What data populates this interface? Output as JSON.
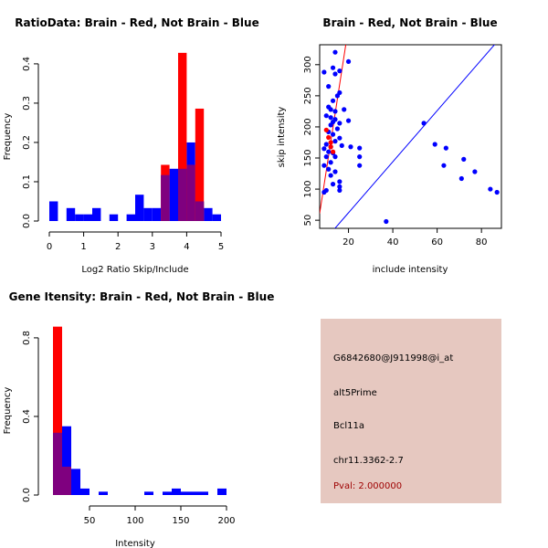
{
  "chart_data": [
    {
      "type": "bar",
      "title": "RatioData: Brain - Red, Not Brain - Blue",
      "xlabel": "Log2 Ratio Skip/Include",
      "ylabel": "Frequency",
      "xlim": [
        0,
        5
      ],
      "ylim": [
        0,
        0.43
      ],
      "x_ticks": [
        0,
        1,
        2,
        3,
        4,
        5
      ],
      "y_ticks": [
        0.0,
        0.1,
        0.2,
        0.3,
        0.4
      ],
      "y_tick_labels": [
        "0.0",
        "0.1",
        "0.2",
        "0.3",
        "0.4"
      ],
      "bin_width": 0.25,
      "series": [
        {
          "name": "Brain",
          "color": "#ff0000",
          "bins_start": [
            3.25,
            3.75,
            4.0,
            4.25
          ],
          "values": [
            0.143,
            0.428,
            0.143,
            0.286
          ]
        },
        {
          "name": "Not Brain",
          "color": "#0000ff",
          "bins_start": [
            0.0,
            0.5,
            0.75,
            1.0,
            1.25,
            1.75,
            2.25,
            2.5,
            2.75,
            3.0,
            3.25,
            3.5,
            3.75,
            4.0,
            4.25,
            4.5,
            4.75
          ],
          "values": [
            0.05,
            0.033,
            0.017,
            0.017,
            0.033,
            0.017,
            0.017,
            0.067,
            0.033,
            0.033,
            0.117,
            0.133,
            0.133,
            0.2,
            0.05,
            0.033,
            0.017
          ]
        }
      ]
    },
    {
      "type": "scatter",
      "title": "Brain - Red, Not Brain - Blue",
      "xlabel": "include intensity",
      "ylabel": "skip intensity",
      "xlim": [
        7,
        89
      ],
      "ylim": [
        37,
        332
      ],
      "x_ticks": [
        20,
        40,
        60,
        80
      ],
      "y_ticks": [
        50,
        100,
        150,
        200,
        250,
        300
      ],
      "series": [
        {
          "name": "Not Brain",
          "color": "#0000ff",
          "points": [
            [
              9,
              288
            ],
            [
              14,
              320
            ],
            [
              13,
              295
            ],
            [
              16,
              290
            ],
            [
              14,
              285
            ],
            [
              20,
              305
            ],
            [
              11,
              265
            ],
            [
              16,
              255
            ],
            [
              15,
              250
            ],
            [
              13,
              242
            ],
            [
              11,
              232
            ],
            [
              12,
              228
            ],
            [
              14,
              225
            ],
            [
              18,
              228
            ],
            [
              10,
              218
            ],
            [
              12,
              215
            ],
            [
              14,
              212
            ],
            [
              13,
              208
            ],
            [
              16,
              206
            ],
            [
              20,
              210
            ],
            [
              12,
              203
            ],
            [
              15,
              197
            ],
            [
              11,
              192
            ],
            [
              13,
              188
            ],
            [
              16,
              182
            ],
            [
              14,
              177
            ],
            [
              10,
              172
            ],
            [
              12,
              168
            ],
            [
              17,
              170
            ],
            [
              9,
              165
            ],
            [
              11,
              160
            ],
            [
              13,
              158
            ],
            [
              21,
              168
            ],
            [
              25,
              166
            ],
            [
              10,
              152
            ],
            [
              14,
              152
            ],
            [
              25,
              152
            ],
            [
              12,
              143
            ],
            [
              9,
              138
            ],
            [
              11,
              132
            ],
            [
              14,
              128
            ],
            [
              25,
              138
            ],
            [
              12,
              122
            ],
            [
              16,
              112
            ],
            [
              13,
              108
            ],
            [
              16,
              104
            ],
            [
              10,
              98
            ],
            [
              16,
              98
            ],
            [
              9,
              95
            ],
            [
              54,
              206
            ],
            [
              59,
              172
            ],
            [
              64,
              166
            ],
            [
              63,
              138
            ],
            [
              72,
              148
            ],
            [
              71,
              117
            ],
            [
              77,
              128
            ],
            [
              84,
              100
            ],
            [
              87,
              95
            ],
            [
              37,
              48
            ]
          ]
        },
        {
          "name": "Brain",
          "color": "#ff0000",
          "points": [
            [
              10,
              195
            ],
            [
              11,
              183
            ],
            [
              12,
              175
            ],
            [
              12,
              168
            ],
            [
              13,
              160
            ]
          ]
        }
      ],
      "lines": [
        {
          "name": "identity line",
          "color": "#0000ff",
          "slope": 4.1,
          "intercept": -20
        },
        {
          "name": "brain fit",
          "color": "#ff0000",
          "slope": 23.0,
          "intercept": -100
        }
      ]
    },
    {
      "type": "bar",
      "title": "Gene Itensity: Brain - Red, Not Brain - Blue",
      "xlabel": "Intensity",
      "ylabel": "Frequency",
      "xlim": [
        0,
        200
      ],
      "ylim": [
        0,
        0.86
      ],
      "x_ticks": [
        50,
        100,
        150,
        200
      ],
      "y_ticks": [
        0.0,
        0.4,
        0.8
      ],
      "y_tick_labels": [
        "0.0",
        "0.4",
        "0.8"
      ],
      "bin_width": 10,
      "series": [
        {
          "name": "Brain",
          "color": "#ff0000",
          "bins_start": [
            10,
            20
          ],
          "values": [
            0.857,
            0.143
          ]
        },
        {
          "name": "Not Brain",
          "color": "#0000ff",
          "bins_start": [
            10,
            20,
            30,
            40,
            60,
            110,
            130,
            140,
            150,
            160,
            170,
            190
          ],
          "values": [
            0.317,
            0.35,
            0.133,
            0.033,
            0.017,
            0.017,
            0.017,
            0.033,
            0.017,
            0.017,
            0.017,
            0.033
          ]
        }
      ]
    }
  ],
  "info": {
    "probe": "G6842680@J911998@i_at",
    "event": "alt5Prime",
    "gene": "Bcl11a",
    "location": "chr11.3362-2.7",
    "pval": "Pval: 2.000000",
    "box_color": "#e6c8c0",
    "pval_color": "#9e0000"
  }
}
